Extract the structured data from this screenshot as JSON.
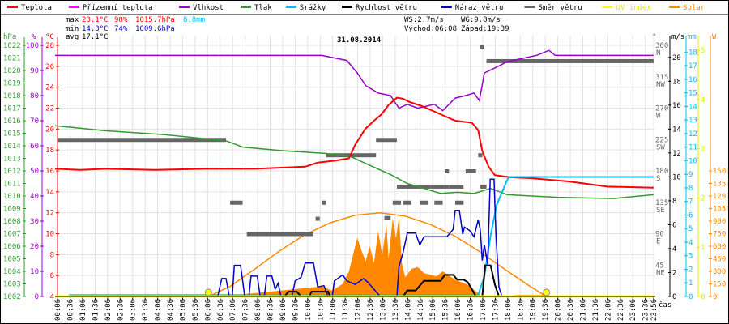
{
  "chart_data": {
    "type": "line",
    "title": "31.08.2014",
    "xlabel": "čas",
    "x_ticks": [
      "00:06",
      "00:36",
      "01:06",
      "01:36",
      "02:06",
      "02:36",
      "03:06",
      "03:36",
      "04:06",
      "04:36",
      "05:06",
      "05:36",
      "06:06",
      "06:36",
      "07:06",
      "07:36",
      "08:06",
      "08:36",
      "09:06",
      "09:36",
      "10:06",
      "10:36",
      "11:06",
      "11:36",
      "12:06",
      "12:36",
      "13:06",
      "13:36",
      "14:06",
      "14:36",
      "15:06",
      "15:36",
      "16:06",
      "16:36",
      "17:06",
      "17:36",
      "18:06",
      "18:36",
      "19:06",
      "19:36",
      "20:06",
      "20:36",
      "21:06",
      "21:36",
      "22:06",
      "22:36",
      "23:06",
      "23:36",
      "23:56"
    ],
    "legend": [
      {
        "name": "Teplota",
        "color": "#ff0000"
      },
      {
        "name": "Přízemní teplota",
        "color": "#ff00ff"
      },
      {
        "name": "Vlhkost",
        "color": "#9900cc"
      },
      {
        "name": "Tlak",
        "color": "#339933"
      },
      {
        "name": "Srážky",
        "color": "#00bbff"
      },
      {
        "name": "Rychlost větru",
        "color": "#000000"
      },
      {
        "name": "Náraz větru",
        "color": "#0000cc"
      },
      {
        "name": "Směr větru",
        "color": "#666666"
      },
      {
        "name": "UV index",
        "color": "#ffff00"
      },
      {
        "name": "Solar",
        "color": "#ff8800"
      }
    ],
    "stats": {
      "max_label": "max",
      "min_label": "min",
      "avg_label": "avg",
      "temp_max": "23.1°C",
      "hum_max": "98%",
      "press_max": "1015.7hPa",
      "rain": "8.8mm",
      "temp_min": "14.3°C",
      "hum_min": "74%",
      "press_min": "1009.6hPa",
      "temp_avg": "17.1°C",
      "ws": "WS:2.7m/s",
      "wg": "WG:9.8m/s",
      "sunrise": "Východ:06:08",
      "sunset": "Západ:19:39"
    },
    "axes": {
      "pressure": {
        "unit": "hPa",
        "range": [
          1002,
          1022
        ],
        "ticks": [
          "1002",
          "1003",
          "1004",
          "1005",
          "1006",
          "1007",
          "1008",
          "1009",
          "1010",
          "1011",
          "1012",
          "1013",
          "1014",
          "1015",
          "1016",
          "1017",
          "1018",
          "1019",
          "1020",
          "1021",
          "1022"
        ]
      },
      "humidity": {
        "unit": "%",
        "range": [
          0,
          100
        ],
        "ticks": [
          "0",
          "10",
          "20",
          "30",
          "40",
          "50",
          "60",
          "70",
          "80",
          "90",
          "100"
        ]
      },
      "temperature": {
        "unit": "°C",
        "range": [
          4,
          28
        ],
        "ticks": [
          "4",
          "6",
          "8",
          "10",
          "12",
          "14",
          "16",
          "18",
          "20",
          "22",
          "24",
          "26",
          "28"
        ]
      },
      "direction": {
        "unit": "°",
        "range": [
          0,
          360
        ],
        "ticks": [
          {
            "v": "45",
            "c": "NE"
          },
          {
            "v": "90",
            "c": "E"
          },
          {
            "v": "135",
            "c": "SE"
          },
          {
            "v": "180",
            "c": "S"
          },
          {
            "v": "225",
            "c": "SW"
          },
          {
            "v": "270",
            "c": "W"
          },
          {
            "v": "315",
            "c": "NW"
          },
          {
            "v": "360",
            "c": "N"
          }
        ]
      },
      "wind": {
        "unit": "m/s",
        "range": [
          0,
          21
        ],
        "ticks": [
          "0",
          "2",
          "4",
          "6",
          "8",
          "10",
          "12",
          "14",
          "16",
          "18",
          "20"
        ]
      },
      "rain": {
        "unit": "mm",
        "range": [
          0,
          18.5
        ],
        "ticks": [
          "0",
          "1",
          "2",
          "3",
          "4",
          "5",
          "6",
          "7",
          "8",
          "9",
          "10",
          "11",
          "12",
          "13",
          "14",
          "15",
          "16",
          "17",
          "18"
        ]
      },
      "uv": {
        "unit": "",
        "range": [
          0,
          5.1
        ],
        "ticks": [
          "0",
          "1",
          "2",
          "3",
          "4",
          "5"
        ]
      },
      "solar": {
        "unit": "W",
        "range": [
          0,
          3000
        ],
        "ticks": [
          "0",
          "150",
          "300",
          "450",
          "600",
          "750",
          "900",
          "1050",
          "1200",
          "1350",
          "1500"
        ]
      }
    },
    "series": {
      "temperature": [
        [
          "00:00",
          16.2
        ],
        [
          "01:00",
          16.1
        ],
        [
          "02:00",
          16.2
        ],
        [
          "04:00",
          16.1
        ],
        [
          "06:00",
          16.2
        ],
        [
          "08:00",
          16.2
        ],
        [
          "10:00",
          16.4
        ],
        [
          "10:30",
          16.8
        ],
        [
          "11:15",
          17.0
        ],
        [
          "11:45",
          17.2
        ],
        [
          "12:00",
          18.5
        ],
        [
          "12:24",
          20.0
        ],
        [
          "12:45",
          20.8
        ],
        [
          "13:03",
          21.4
        ],
        [
          "13:20",
          22.3
        ],
        [
          "13:40",
          23.0
        ],
        [
          "13:55",
          22.9
        ],
        [
          "14:10",
          22.6
        ],
        [
          "14:40",
          22.2
        ],
        [
          "15:20",
          21.5
        ],
        [
          "16:00",
          20.8
        ],
        [
          "16:40",
          20.6
        ],
        [
          "16:55",
          19.9
        ],
        [
          "17:05",
          17.9
        ],
        [
          "17:20",
          16.4
        ],
        [
          "17:35",
          15.6
        ],
        [
          "18:10",
          15.4
        ],
        [
          "19:00",
          15.3
        ],
        [
          "20:30",
          15.0
        ],
        [
          "22:05",
          14.5
        ],
        [
          "23:56",
          14.4
        ]
      ],
      "apparent_temperature": [],
      "humidity": [
        [
          "00:00",
          96
        ],
        [
          "10:00",
          96
        ],
        [
          "10:40",
          96
        ],
        [
          "11:40",
          94
        ],
        [
          "12:05",
          89
        ],
        [
          "12:25",
          84
        ],
        [
          "12:55",
          81
        ],
        [
          "13:25",
          80
        ],
        [
          "13:45",
          75
        ],
        [
          "14:05",
          76.5
        ],
        [
          "14:30",
          75
        ],
        [
          "15:10",
          76.5
        ],
        [
          "15:30",
          74
        ],
        [
          "16:00",
          79
        ],
        [
          "16:25",
          80
        ],
        [
          "16:45",
          81
        ],
        [
          "16:58",
          78
        ],
        [
          "17:10",
          89
        ],
        [
          "17:35",
          91
        ],
        [
          "18:05",
          93.5
        ],
        [
          "19:15",
          96
        ],
        [
          "19:45",
          98
        ],
        [
          "20:00",
          96
        ],
        [
          "23:56",
          96
        ]
      ],
      "pressure": [
        [
          "00:00",
          1015.6
        ],
        [
          "01:00",
          1015.4
        ],
        [
          "02:00",
          1015.2
        ],
        [
          "04:20",
          1014.9
        ],
        [
          "06:50",
          1014.4
        ],
        [
          "07:30",
          1013.9
        ],
        [
          "09:10",
          1013.6
        ],
        [
          "10:45",
          1013.4
        ],
        [
          "11:45",
          1013.2
        ],
        [
          "12:45",
          1012.3
        ],
        [
          "13:25",
          1011.7
        ],
        [
          "14:05",
          1011.0
        ],
        [
          "14:45",
          1010.6
        ],
        [
          "15:25",
          1010.2
        ],
        [
          "16:05",
          1010.3
        ],
        [
          "16:45",
          1010.2
        ],
        [
          "17:25",
          1010.6
        ],
        [
          "18:05",
          1010.1
        ],
        [
          "20:05",
          1009.9
        ],
        [
          "22:20",
          1009.8
        ],
        [
          "23:56",
          1010.1
        ]
      ],
      "rain_mm": [
        [
          "00:00",
          0
        ],
        [
          "00:30",
          0
        ],
        [
          "00:36",
          0.1
        ],
        [
          "16:55",
          0.1
        ],
        [
          "17:10",
          1.5
        ],
        [
          "17:25",
          4.5
        ],
        [
          "17:40",
          6.8
        ],
        [
          "18:05",
          8.6
        ],
        [
          "18:10",
          8.8
        ],
        [
          "23:56",
          8.8
        ]
      ],
      "wind_speed": [
        [
          "00:00",
          0
        ],
        [
          "09:10",
          0
        ],
        [
          "09:20",
          0.4
        ],
        [
          "09:40",
          0.4
        ],
        [
          "09:50",
          0
        ],
        [
          "10:10",
          0
        ],
        [
          "10:15",
          0.4
        ],
        [
          "10:55",
          0.4
        ],
        [
          "11:00",
          0
        ],
        [
          "13:55",
          0
        ],
        [
          "14:05",
          0.5
        ],
        [
          "14:25",
          0.5
        ],
        [
          "14:45",
          1.3
        ],
        [
          "15:25",
          1.3
        ],
        [
          "15:35",
          1.8
        ],
        [
          "15:55",
          1.8
        ],
        [
          "16:05",
          1.4
        ],
        [
          "16:20",
          1.4
        ],
        [
          "16:30",
          1.2
        ],
        [
          "16:50",
          0
        ],
        [
          "17:05",
          0
        ],
        [
          "17:12",
          2.6
        ],
        [
          "17:25",
          2.6
        ],
        [
          "17:35",
          1.0
        ],
        [
          "17:45",
          0
        ],
        [
          "23:56",
          0
        ]
      ],
      "wind_gust": [
        [
          "00:00",
          0
        ],
        [
          "06:30",
          0
        ],
        [
          "06:40",
          1.5
        ],
        [
          "06:50",
          1.5
        ],
        [
          "06:58",
          0
        ],
        [
          "07:05",
          0
        ],
        [
          "07:10",
          2.6
        ],
        [
          "07:25",
          2.6
        ],
        [
          "07:35",
          0
        ],
        [
          "07:45",
          0
        ],
        [
          "07:50",
          1.7
        ],
        [
          "08:05",
          1.7
        ],
        [
          "08:12",
          0
        ],
        [
          "08:22",
          0
        ],
        [
          "08:28",
          1.7
        ],
        [
          "08:40",
          1.7
        ],
        [
          "08:48",
          0.6
        ],
        [
          "08:55",
          1.1
        ],
        [
          "09:02",
          0
        ],
        [
          "09:28",
          0
        ],
        [
          "09:36",
          1.3
        ],
        [
          "09:50",
          1.6
        ],
        [
          "10:00",
          2.8
        ],
        [
          "10:20",
          2.8
        ],
        [
          "10:30",
          0.8
        ],
        [
          "10:45",
          0.9
        ],
        [
          "10:55",
          0
        ],
        [
          "11:05",
          0
        ],
        [
          "11:10",
          1.3
        ],
        [
          "11:30",
          1.8
        ],
        [
          "11:40",
          1.3
        ],
        [
          "12:00",
          1.0
        ],
        [
          "12:20",
          1.5
        ],
        [
          "12:30",
          1.2
        ],
        [
          "13:00",
          0
        ],
        [
          "13:40",
          0
        ],
        [
          "13:45",
          2.5
        ],
        [
          "13:55",
          3.7
        ],
        [
          "14:05",
          5.3
        ],
        [
          "14:25",
          5.3
        ],
        [
          "14:35",
          4.3
        ],
        [
          "14:45",
          5.0
        ],
        [
          "15:40",
          5.0
        ],
        [
          "15:55",
          5.6
        ],
        [
          "16:00",
          7.2
        ],
        [
          "16:10",
          7.2
        ],
        [
          "16:18",
          5.2
        ],
        [
          "16:22",
          5.8
        ],
        [
          "16:35",
          5.5
        ],
        [
          "16:45",
          5.0
        ],
        [
          "16:55",
          6.4
        ],
        [
          "17:00",
          5.6
        ],
        [
          "17:05",
          3.0
        ],
        [
          "17:10",
          4.3
        ],
        [
          "17:18",
          2.7
        ],
        [
          "17:24",
          9.8
        ],
        [
          "17:33",
          9.8
        ],
        [
          "17:38",
          5.0
        ],
        [
          "17:45",
          0.8
        ],
        [
          "17:52",
          0
        ],
        [
          "23:56",
          0
        ]
      ],
      "wind_direction_segments": [
        [
          "00:06",
          "06:50",
          225
        ],
        [
          "07:00",
          "07:30",
          135
        ],
        [
          "07:40",
          "10:20",
          90
        ],
        [
          "10:25",
          "10:35",
          112
        ],
        [
          "10:40",
          "10:50",
          135
        ],
        [
          "10:50",
          "12:50",
          203
        ],
        [
          "12:50",
          "13:40",
          225
        ],
        [
          "13:10",
          "13:25",
          113
        ],
        [
          "13:30",
          "13:50",
          135
        ],
        [
          "13:40",
          "15:00",
          158
        ],
        [
          "13:55",
          "14:15",
          135
        ],
        [
          "14:35",
          "14:55",
          135
        ],
        [
          "15:00",
          "15:45",
          158
        ],
        [
          "15:10",
          "15:30",
          135
        ],
        [
          "15:35",
          "15:45",
          180
        ],
        [
          "15:45",
          "16:20",
          158
        ],
        [
          "16:00",
          "16:20",
          135
        ],
        [
          "16:25",
          "16:50",
          180
        ],
        [
          "16:55",
          "17:05",
          203
        ],
        [
          "17:00",
          "17:15",
          158
        ],
        [
          "17:00",
          "17:10",
          358
        ],
        [
          "17:15",
          "23:56",
          338
        ]
      ],
      "uv_index": [
        [
          "00:00",
          0
        ],
        [
          "23:56",
          0
        ]
      ],
      "solar": [
        [
          "00:00",
          0
        ],
        [
          "06:08",
          0
        ],
        [
          "07:00",
          15
        ],
        [
          "08:00",
          40
        ],
        [
          "09:00",
          70
        ],
        [
          "10:00",
          100
        ],
        [
          "10:40",
          120
        ],
        [
          "11:05",
          70
        ],
        [
          "11:30",
          150
        ],
        [
          "11:45",
          300
        ],
        [
          "11:55",
          500
        ],
        [
          "12:05",
          700
        ],
        [
          "12:15",
          550
        ],
        [
          "12:25",
          420
        ],
        [
          "12:35",
          600
        ],
        [
          "12:45",
          400
        ],
        [
          "12:55",
          780
        ],
        [
          "13:05",
          500
        ],
        [
          "13:15",
          860
        ],
        [
          "13:20",
          450
        ],
        [
          "13:30",
          930
        ],
        [
          "13:38",
          700
        ],
        [
          "13:45",
          950
        ],
        [
          "13:52",
          400
        ],
        [
          "14:00",
          230
        ],
        [
          "14:15",
          330
        ],
        [
          "14:30",
          350
        ],
        [
          "14:45",
          280
        ],
        [
          "15:00",
          260
        ],
        [
          "15:15",
          240
        ],
        [
          "15:30",
          300
        ],
        [
          "16:00",
          200
        ],
        [
          "16:30",
          140
        ],
        [
          "16:50",
          60
        ],
        [
          "17:05",
          0
        ],
        [
          "18:00",
          5
        ],
        [
          "18:30",
          20
        ],
        [
          "19:30",
          20
        ],
        [
          "19:45",
          0
        ],
        [
          "23:56",
          0
        ]
      ],
      "solar_theoretical": [
        [
          "06:08",
          0
        ],
        [
          "07:00",
          120
        ],
        [
          "08:00",
          330
        ],
        [
          "09:00",
          550
        ],
        [
          "10:00",
          740
        ],
        [
          "11:00",
          880
        ],
        [
          "12:00",
          970
        ],
        [
          "13:00",
          1000
        ],
        [
          "14:00",
          960
        ],
        [
          "15:00",
          860
        ],
        [
          "16:00",
          720
        ],
        [
          "17:00",
          530
        ],
        [
          "18:00",
          320
        ],
        [
          "19:00",
          120
        ],
        [
          "19:39",
          0
        ]
      ],
      "sun_events": [
        [
          "06:08",
          "sunrise"
        ],
        [
          "19:39",
          "sunset"
        ]
      ]
    }
  }
}
